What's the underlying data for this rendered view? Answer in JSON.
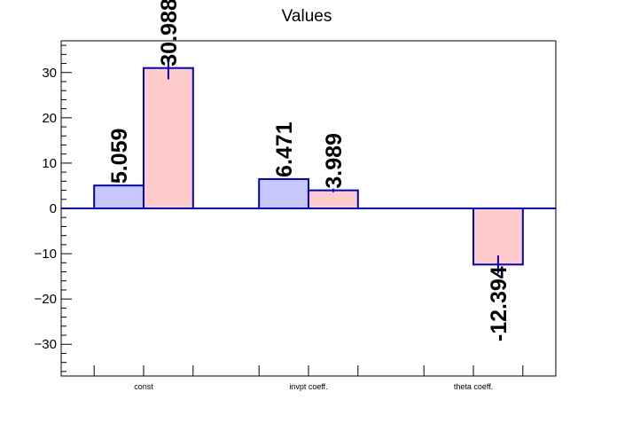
{
  "chart_data": {
    "type": "bar",
    "title": "Values",
    "xlabel": "",
    "ylabel": "",
    "categories": [
      "const",
      "invpt coeff.",
      "theta coeff."
    ],
    "ylim": [
      -37,
      37
    ],
    "yticks": [
      -30,
      -20,
      -10,
      0,
      10,
      20,
      30
    ],
    "ytick_labels": [
      "−30",
      "−20",
      "−10",
      "0",
      "10",
      "20",
      "30"
    ],
    "grid": false,
    "legend": "none",
    "series": [
      {
        "values": [
          5.059,
          6.471,
          null
        ],
        "labels": [
          "5.059",
          "6.471",
          ""
        ],
        "errors": [
          0,
          0,
          0
        ],
        "fill": "#c8c8ff",
        "stroke": "#0000cc"
      },
      {
        "values": [
          30.988,
          3.989,
          -12.394
        ],
        "labels": [
          "30.988",
          "3.989",
          "-12.394"
        ],
        "errors": [
          2.5,
          0.4,
          2.0
        ],
        "fill": "#ffcccc",
        "stroke": "#0000cc"
      }
    ],
    "zero_line_color": "#0000cc"
  }
}
